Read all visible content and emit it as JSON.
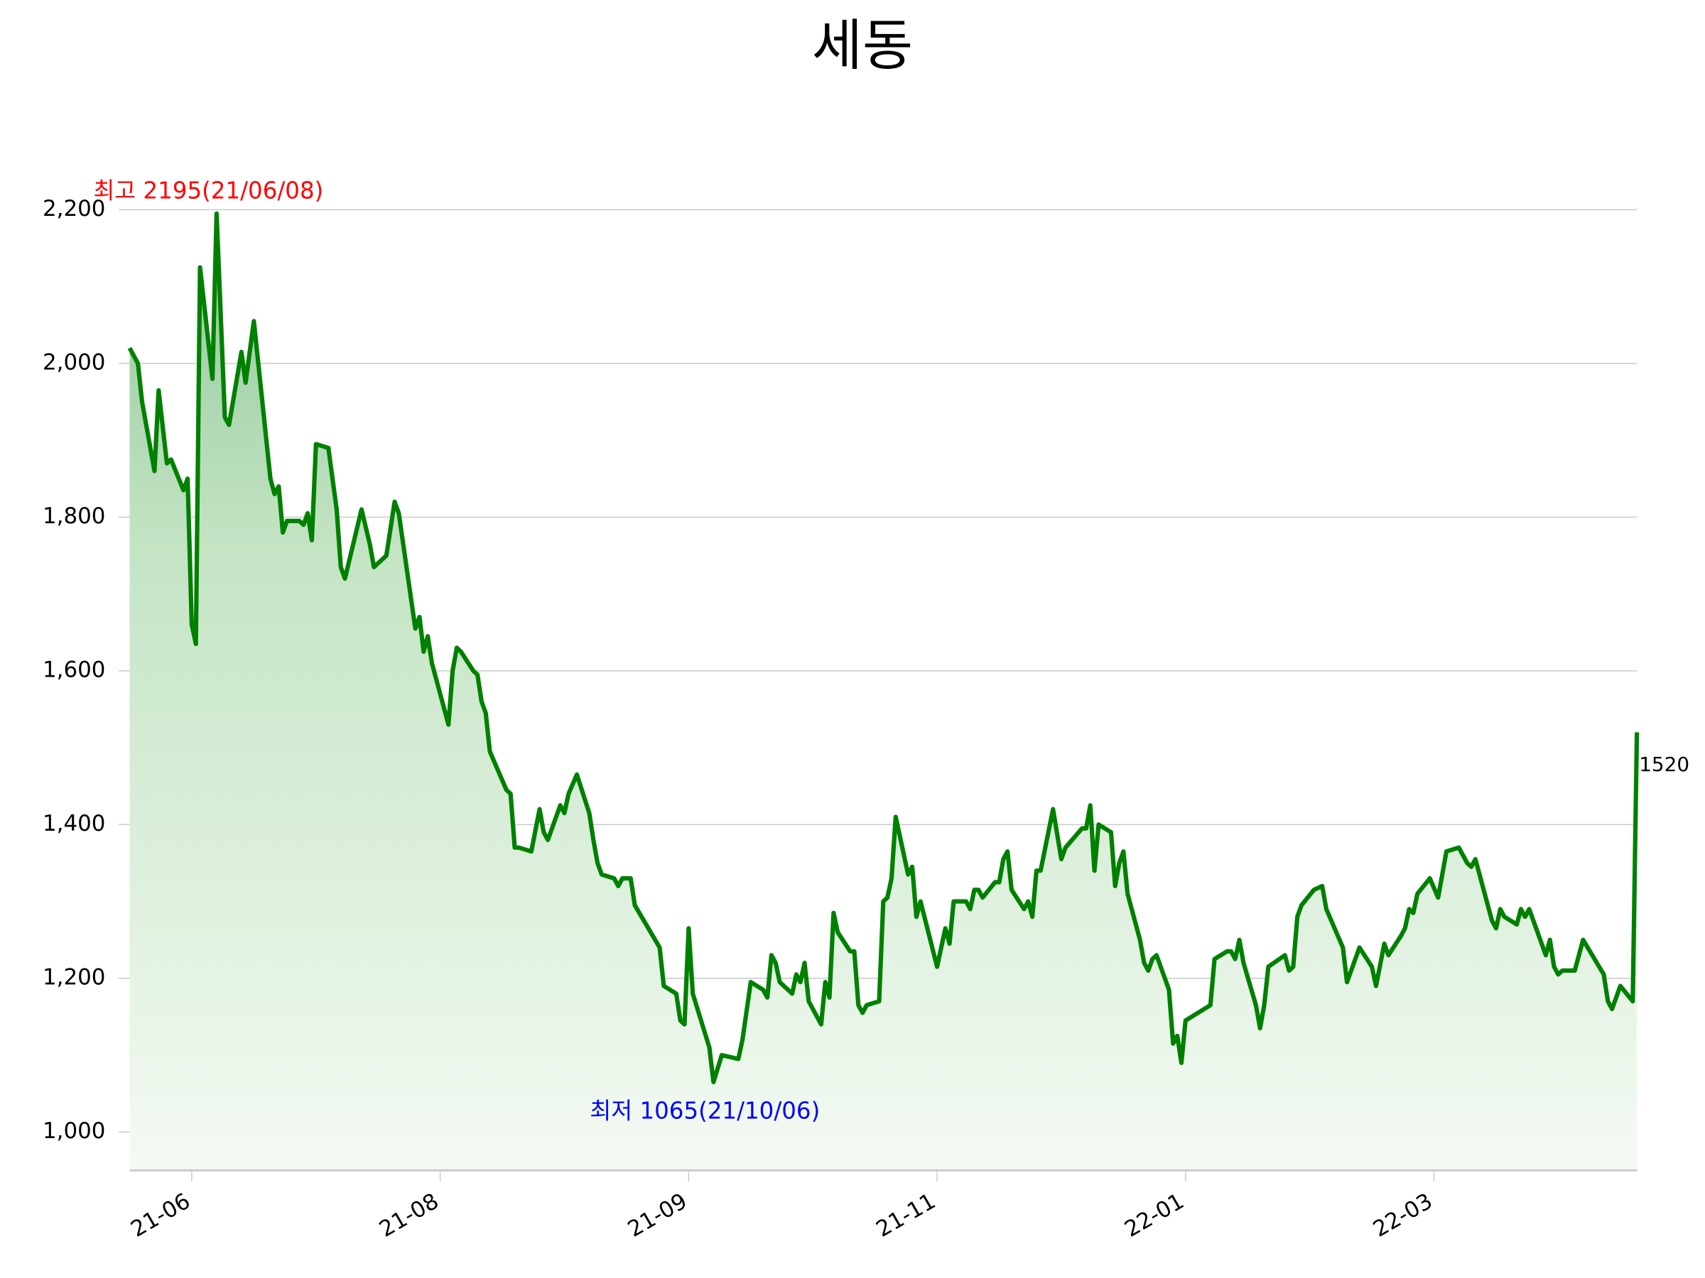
{
  "chart_data": {
    "type": "line",
    "title": "세동",
    "color": "#008000",
    "x": [
      0,
      2,
      3,
      6,
      7,
      9,
      10,
      13,
      14,
      15,
      16,
      17,
      20,
      21,
      23,
      24,
      27,
      28,
      30,
      34,
      35,
      36,
      37,
      38,
      41,
      42,
      43,
      44,
      45,
      48,
      50,
      51,
      52,
      56,
      58,
      59,
      62,
      64,
      65,
      69,
      70,
      71,
      72,
      73,
      77,
      78,
      79,
      80,
      83,
      84,
      85,
      86,
      87,
      91,
      92,
      93,
      94,
      97,
      99,
      100,
      101,
      104,
      105,
      106,
      108,
      111,
      112,
      113,
      114,
      117,
      118,
      119,
      121,
      122,
      128,
      129,
      132,
      133,
      134,
      135,
      136,
      140,
      141,
      143,
      147,
      148,
      150,
      153,
      154,
      155,
      156,
      157,
      160,
      161,
      162,
      163,
      164,
      167,
      168,
      169,
      170,
      171,
      174,
      175,
      176,
      177,
      178,
      181,
      182,
      183,
      184,
      185,
      188,
      189,
      190,
      191,
      195,
      197,
      198,
      199,
      202,
      203,
      204,
      205,
      206,
      209,
      210,
      211,
      212,
      213,
      216,
      217,
      218,
      219,
      220,
      223,
      225,
      226,
      230,
      231,
      232,
      233,
      234,
      237,
      238,
      239,
      240,
      241,
      244,
      245,
      246,
      247,
      248,
      251,
      252,
      253,
      254,
      255,
      261,
      262,
      265,
      266,
      267,
      268,
      269,
      272,
      273,
      274,
      275,
      279,
      280,
      281,
      282,
      283,
      286,
      288,
      289,
      293,
      294,
      295,
      297,
      300,
      301,
      303,
      304,
      307,
      308,
      309,
      310,
      311,
      314,
      316,
      318,
      321,
      322,
      323,
      324,
      325,
      329,
      330,
      331,
      332,
      335,
      336,
      337,
      338,
      342,
      343,
      344,
      345,
      346,
      349,
      351,
      356,
      357,
      358,
      360,
      363,
      364
    ],
    "values": [
      2020,
      2000,
      1950,
      1860,
      1965,
      1870,
      1875,
      1835,
      1850,
      1660,
      1635,
      2125,
      1980,
      2195,
      1930,
      1920,
      2015,
      1975,
      2055,
      1850,
      1830,
      1840,
      1780,
      1795,
      1795,
      1790,
      1805,
      1770,
      1895,
      1890,
      1810,
      1735,
      1720,
      1810,
      1765,
      1735,
      1750,
      1820,
      1805,
      1655,
      1670,
      1625,
      1645,
      1610,
      1530,
      1600,
      1630,
      1625,
      1600,
      1595,
      1560,
      1545,
      1495,
      1445,
      1440,
      1370,
      1370,
      1365,
      1420,
      1390,
      1380,
      1425,
      1415,
      1440,
      1465,
      1415,
      1380,
      1350,
      1335,
      1330,
      1320,
      1330,
      1330,
      1295,
      1240,
      1190,
      1180,
      1145,
      1140,
      1265,
      1180,
      1110,
      1065,
      1100,
      1095,
      1120,
      1195,
      1185,
      1175,
      1230,
      1220,
      1195,
      1180,
      1205,
      1195,
      1220,
      1170,
      1140,
      1195,
      1175,
      1285,
      1260,
      1235,
      1235,
      1165,
      1155,
      1165,
      1170,
      1300,
      1305,
      1330,
      1410,
      1335,
      1345,
      1280,
      1300,
      1215,
      1265,
      1245,
      1300,
      1300,
      1290,
      1315,
      1315,
      1305,
      1325,
      1325,
      1355,
      1365,
      1315,
      1290,
      1300,
      1280,
      1340,
      1340,
      1420,
      1355,
      1370,
      1395,
      1395,
      1425,
      1340,
      1400,
      1390,
      1320,
      1350,
      1365,
      1310,
      1250,
      1220,
      1210,
      1225,
      1230,
      1185,
      1115,
      1125,
      1090,
      1145,
      1165,
      1225,
      1235,
      1235,
      1225,
      1250,
      1220,
      1165,
      1135,
      1165,
      1215,
      1230,
      1210,
      1215,
      1280,
      1295,
      1315,
      1320,
      1290,
      1240,
      1195,
      1210,
      1240,
      1215,
      1190,
      1245,
      1230,
      1255,
      1265,
      1290,
      1285,
      1310,
      1330,
      1305,
      1365,
      1370,
      1360,
      1350,
      1345,
      1355,
      1275,
      1265,
      1290,
      1280,
      1270,
      1290,
      1280,
      1290,
      1230,
      1250,
      1215,
      1205,
      1210,
      1210,
      1250,
      1205,
      1170,
      1160,
      1190,
      1170,
      1520
    ],
    "xlim": [
      0,
      364
    ],
    "ylim": [
      950,
      2250
    ],
    "xticks": [
      {
        "value": 15,
        "label": "21-06"
      },
      {
        "value": 75,
        "label": "21-08"
      },
      {
        "value": 135,
        "label": "21-09"
      },
      {
        "value": 195,
        "label": "21-11"
      },
      {
        "value": 255,
        "label": "22-01"
      },
      {
        "value": 315,
        "label": "22-03"
      }
    ],
    "yticks": [
      {
        "value": 1000,
        "label": "1,000"
      },
      {
        "value": 1200,
        "label": "1,200"
      },
      {
        "value": 1400,
        "label": "1,400"
      },
      {
        "value": 1600,
        "label": "1,600"
      },
      {
        "value": 1800,
        "label": "1,800"
      },
      {
        "value": 2000,
        "label": "2,000"
      },
      {
        "value": 2200,
        "label": "2,200"
      }
    ],
    "grid": true,
    "annotations": [
      {
        "text": "최고 2195(21/06/08)",
        "color": "#ff0000"
      },
      {
        "text": "최저 1065(21/10/06)",
        "color": "#0000ff"
      }
    ]
  }
}
